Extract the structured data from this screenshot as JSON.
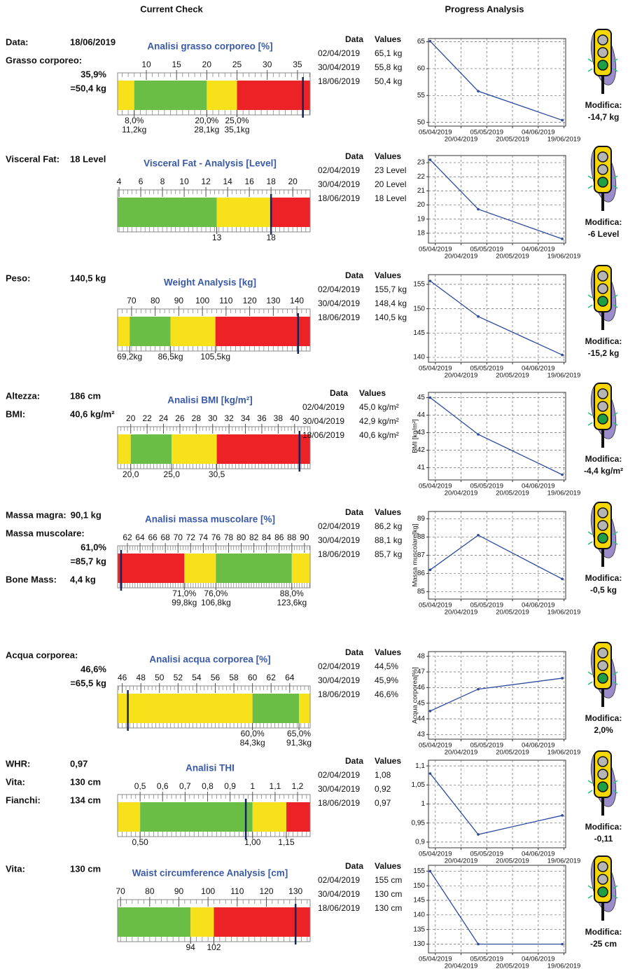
{
  "header": {
    "left": "Current Check",
    "right": "Progress Analysis"
  },
  "sections": [
    {
      "info": [
        {
          "label": "Data:",
          "value": "18/06/2019"
        },
        {
          "label": "Grasso corporeo:",
          "lines": [
            "35,9%",
            "=50,4 kg"
          ]
        }
      ],
      "gauge": {
        "title": "Analisi grasso corporeo [%]",
        "range": [
          5.25,
          37.1
        ],
        "ticks": [
          10,
          15,
          20,
          25,
          30,
          35
        ],
        "segments": [
          {
            "from": 5.25,
            "to": 8,
            "color": "#f7e11a"
          },
          {
            "from": 8,
            "to": 20,
            "color": "#6abd45"
          },
          {
            "from": 20,
            "to": 25,
            "color": "#f7e11a"
          },
          {
            "from": 25,
            "to": 37.1,
            "color": "#ec2227"
          }
        ],
        "marker": 35.9,
        "bounds": [
          {
            "value": 8,
            "label": "8,0%",
            "sub": "11,2kg"
          },
          {
            "value": 20,
            "label": "20,0%",
            "sub": "28,1kg"
          },
          {
            "value": 25,
            "label": "25,0%",
            "sub": "35,1kg"
          }
        ]
      },
      "table": {
        "headers": [
          "Data",
          "Values"
        ],
        "rows": [
          [
            "02/04/2019",
            "65,1 kg"
          ],
          [
            "30/04/2019",
            "55,8 kg"
          ],
          [
            "18/06/2019",
            "50,4 kg"
          ]
        ]
      },
      "chart": {
        "type": "line",
        "x": [
          "02/04/2019",
          "30/04/2019",
          "18/06/2019"
        ],
        "values": [
          65.1,
          55.8,
          50.4
        ],
        "ylim": [
          49.3,
          65.6
        ],
        "yticks": [
          50,
          55,
          60,
          65
        ],
        "xlim": [
          "01/04/2019",
          "20/06/2019"
        ],
        "xticks": [
          "05/04/2019",
          "20/04/2019",
          "05/05/2019",
          "20/05/2019",
          "04/06/2019",
          "19/06/2019"
        ],
        "color": "#2b4a9e"
      },
      "change": {
        "label": "Modifica:",
        "value": "-14,7 kg"
      }
    },
    {
      "info": [
        {
          "label": "Visceral Fat:",
          "value": "18 Level"
        }
      ],
      "gauge": {
        "title": "Visceral Fat - Analysis [Level]",
        "range": [
          3.87,
          21.6
        ],
        "ticks": [
          4,
          6,
          8,
          10,
          12,
          14,
          16,
          18,
          20
        ],
        "segments": [
          {
            "from": 3.87,
            "to": 13,
            "color": "#6abd45"
          },
          {
            "from": 13,
            "to": 18,
            "color": "#f7e11a"
          },
          {
            "from": 18,
            "to": 21.6,
            "color": "#ec2227"
          }
        ],
        "marker": 18,
        "bounds": [
          {
            "value": 13,
            "label": "13"
          },
          {
            "value": 18,
            "label": "18"
          }
        ]
      },
      "table": {
        "headers": [
          "Data",
          "Values"
        ],
        "rows": [
          [
            "02/04/2019",
            "23 Level"
          ],
          [
            "30/04/2019",
            "20 Level"
          ],
          [
            "18/06/2019",
            "18 Level"
          ]
        ]
      },
      "chart": {
        "type": "line",
        "x": [
          "02/04/2019",
          "30/04/2019",
          "18/06/2019"
        ],
        "values": [
          23.2,
          19.7,
          17.6
        ],
        "ylim": [
          17.3,
          23.5
        ],
        "yticks": [
          18,
          19,
          20,
          21,
          22,
          23
        ],
        "xlim": [
          "01/04/2019",
          "20/06/2019"
        ],
        "xticks": [
          "05/04/2019",
          "20/04/2019",
          "05/05/2019",
          "20/05/2019",
          "04/06/2019",
          "19/06/2019"
        ],
        "color": "#2b4a9e"
      },
      "change": {
        "label": "Modifica:",
        "value": "-6 Level"
      }
    },
    {
      "info": [
        {
          "label": "Peso:",
          "value": "140,5 kg"
        }
      ],
      "gauge": {
        "title": "Weight Analysis [kg]",
        "range": [
          64.1,
          145.6
        ],
        "ticks": [
          70,
          80,
          90,
          100,
          110,
          120,
          130,
          140
        ],
        "segments": [
          {
            "from": 64.1,
            "to": 69.2,
            "color": "#f7e11a"
          },
          {
            "from": 69.2,
            "to": 86.5,
            "color": "#6abd45"
          },
          {
            "from": 86.5,
            "to": 105.5,
            "color": "#f7e11a"
          },
          {
            "from": 105.5,
            "to": 145.6,
            "color": "#ec2227"
          }
        ],
        "marker": 140.5,
        "bounds": [
          {
            "value": 69.2,
            "label": "69,2kg"
          },
          {
            "value": 86.5,
            "label": "86,5kg"
          },
          {
            "value": 105.5,
            "label": "105,5kg"
          }
        ]
      },
      "table": {
        "headers": [
          "Data",
          "Values"
        ],
        "rows": [
          [
            "02/04/2019",
            "155,7 kg"
          ],
          [
            "30/04/2019",
            "148,4 kg"
          ],
          [
            "18/06/2019",
            "140,5 kg"
          ]
        ]
      },
      "chart": {
        "type": "line",
        "x": [
          "02/04/2019",
          "30/04/2019",
          "18/06/2019"
        ],
        "values": [
          155.7,
          148.4,
          140.5
        ],
        "ylim": [
          139,
          157
        ],
        "yticks": [
          140,
          145,
          150,
          155
        ],
        "xlim": [
          "01/04/2019",
          "20/06/2019"
        ],
        "xticks": [
          "05/04/2019",
          "20/04/2019",
          "05/05/2019",
          "20/05/2019",
          "04/06/2019",
          "19/06/2019"
        ],
        "color": "#2b4a9e"
      },
      "change": {
        "label": "Modifica:",
        "value": "-15,2 kg"
      }
    },
    {
      "info": [
        {
          "label": "Altezza:",
          "value": "186 cm"
        },
        {
          "label": "BMI:",
          "value": "40,6 kg/m²"
        }
      ],
      "gauge": {
        "title": "Analisi BMI [kg/m²]",
        "range": [
          18.4,
          41.9
        ],
        "ticks": [
          20,
          22,
          24,
          26,
          28,
          30,
          32,
          34,
          36,
          38,
          40
        ],
        "segments": [
          {
            "from": 18.4,
            "to": 20,
            "color": "#f7e11a"
          },
          {
            "from": 20,
            "to": 25,
            "color": "#6abd45"
          },
          {
            "from": 25,
            "to": 30.5,
            "color": "#f7e11a"
          },
          {
            "from": 30.5,
            "to": 41.9,
            "color": "#ec2227"
          }
        ],
        "marker": 40.6,
        "bounds": [
          {
            "value": 20,
            "label": "20,0"
          },
          {
            "value": 25,
            "label": "25,0"
          },
          {
            "value": 30.5,
            "label": "30,5"
          }
        ]
      },
      "table": {
        "headers": [
          "Data",
          "Values"
        ],
        "rows": [
          [
            "02/04/2019",
            "45,0 kg/m²"
          ],
          [
            "30/04/2019",
            "42,9 kg/m²"
          ],
          [
            "18/06/2019",
            "40,6 kg/m²"
          ]
        ]
      },
      "chart": {
        "type": "line",
        "x": [
          "02/04/2019",
          "30/04/2019",
          "18/06/2019"
        ],
        "values": [
          45.0,
          42.9,
          40.6
        ],
        "ylim": [
          40.3,
          45.3
        ],
        "yticks": [
          41,
          42,
          43,
          44,
          45
        ],
        "ylabel": "BMI [kg/m²]",
        "xlim": [
          "01/04/2019",
          "20/06/2019"
        ],
        "xticks": [
          "05/04/2019",
          "20/04/2019",
          "05/05/2019",
          "20/05/2019",
          "04/06/2019",
          "19/06/2019"
        ],
        "color": "#2b4a9e"
      },
      "change": {
        "label": "Modifica:",
        "value": "-4,4 kg/m²"
      }
    },
    {
      "info": [
        {
          "label": "Massa magra:",
          "value": "90,1 kg"
        },
        {
          "label": "Massa muscolare:",
          "lines": [
            "61,0%",
            "=85,7 kg"
          ]
        },
        {
          "label": "Bone Mass:",
          "value": "4,4 kg"
        }
      ],
      "gauge": {
        "title": "Analisi massa muscolare [%]",
        "range": [
          60.45,
          90.9
        ],
        "ticks": [
          62,
          64,
          66,
          68,
          70,
          72,
          74,
          76,
          78,
          80,
          82,
          84,
          86,
          88,
          90
        ],
        "segments": [
          {
            "from": 60.45,
            "to": 71,
            "color": "#ec2227"
          },
          {
            "from": 71,
            "to": 76,
            "color": "#f7e11a"
          },
          {
            "from": 76,
            "to": 88,
            "color": "#6abd45"
          },
          {
            "from": 88,
            "to": 90.9,
            "color": "#f7e11a"
          }
        ],
        "marker": 61,
        "bounds": [
          {
            "value": 71,
            "label": "71,0%",
            "sub": "99,8kg"
          },
          {
            "value": 76,
            "label": "76,0%",
            "sub": "106,8kg"
          },
          {
            "value": 88,
            "label": "88,0%",
            "sub": "123,6kg"
          }
        ]
      },
      "table": {
        "headers": [
          "Data",
          "Values"
        ],
        "rows": [
          [
            "02/04/2019",
            "86,2 kg"
          ],
          [
            "30/04/2019",
            "88,1 kg"
          ],
          [
            "18/06/2019",
            "85,7 kg"
          ]
        ]
      },
      "chart": {
        "type": "line",
        "x": [
          "02/04/2019",
          "30/04/2019",
          "18/06/2019"
        ],
        "values": [
          86.2,
          88.1,
          85.7
        ],
        "ylim": [
          84.6,
          89.4
        ],
        "yticks": [
          85,
          86,
          87,
          88,
          89
        ],
        "ylabel": "Massa muscolare[kg]",
        "xlim": [
          "01/04/2019",
          "20/06/2019"
        ],
        "xticks": [
          "05/04/2019",
          "20/04/2019",
          "05/05/2019",
          "20/05/2019",
          "04/06/2019",
          "19/06/2019"
        ],
        "color": "#2b4a9e"
      },
      "change": {
        "label": "Modifica:",
        "value": "-0,5 kg"
      }
    },
    {
      "info": [
        {
          "label": "Acqua corporea:",
          "lines": [
            "46,6%",
            "=65,5 kg"
          ]
        }
      ],
      "gauge": {
        "title": "Analisi acqua corporea [%]",
        "range": [
          45.5,
          66.2
        ],
        "ticks": [
          46,
          48,
          50,
          52,
          54,
          56,
          58,
          60,
          62,
          64
        ],
        "segments": [
          {
            "from": 45.5,
            "to": 60,
            "color": "#f7e11a"
          },
          {
            "from": 60,
            "to": 65,
            "color": "#6abd45"
          },
          {
            "from": 65,
            "to": 66.2,
            "color": "#f7e11a"
          }
        ],
        "marker": 46.6,
        "bounds": [
          {
            "value": 60,
            "label": "60,0%",
            "sub": "84,3kg"
          },
          {
            "value": 65,
            "label": "65,0%",
            "sub": "91,3kg"
          }
        ]
      },
      "table": {
        "headers": [
          "Data",
          "Values"
        ],
        "rows": [
          [
            "02/04/2019",
            "44,5%"
          ],
          [
            "30/04/2019",
            "45,9%"
          ],
          [
            "18/06/2019",
            "46,6%"
          ]
        ]
      },
      "chart": {
        "type": "line",
        "x": [
          "02/04/2019",
          "30/04/2019",
          "18/06/2019"
        ],
        "values": [
          44.5,
          45.9,
          46.6
        ],
        "ylim": [
          42.7,
          48.3
        ],
        "yticks": [
          43,
          44,
          45,
          46,
          47,
          48
        ],
        "ylabel": "Acqua corporea[%]",
        "xlim": [
          "01/04/2019",
          "20/06/2019"
        ],
        "xticks": [
          "05/04/2019",
          "20/04/2019",
          "05/05/2019",
          "20/05/2019",
          "04/06/2019",
          "19/06/2019"
        ],
        "color": "#2b4a9e"
      },
      "change": {
        "label": "Modifica:",
        "value": "2,0%"
      }
    },
    {
      "info": [
        {
          "label": "WHR:",
          "value": "0,97"
        },
        {
          "label": "Vita:",
          "value": "130 cm"
        },
        {
          "label": "Fianchi:",
          "value": "134 cm"
        }
      ],
      "gauge": {
        "title": "Analisi THI",
        "range": [
          0.4,
          1.256
        ],
        "ticks": [
          {
            "value": 0.5,
            "label": "0,5"
          },
          {
            "value": 0.6,
            "label": "0,6"
          },
          {
            "value": 0.7,
            "label": "0,7"
          },
          {
            "value": 0.8,
            "label": "0,8"
          },
          {
            "value": 0.9,
            "label": "0,9"
          },
          1,
          {
            "value": 1.1,
            "label": "1,1"
          },
          {
            "value": 1.2,
            "label": "1,2"
          }
        ],
        "segments": [
          {
            "from": 0.4,
            "to": 0.5,
            "color": "#f7e11a"
          },
          {
            "from": 0.5,
            "to": 1.0,
            "color": "#6abd45"
          },
          {
            "from": 1.0,
            "to": 1.15,
            "color": "#f7e11a"
          },
          {
            "from": 1.15,
            "to": 1.256,
            "color": "#ec2227"
          }
        ],
        "marker": 0.97,
        "bounds": [
          {
            "value": 0.5,
            "label": "0,50"
          },
          {
            "value": 1.0,
            "label": "1,00"
          },
          {
            "value": 1.15,
            "label": "1,15"
          }
        ]
      },
      "table": {
        "headers": [
          "Data",
          "Values"
        ],
        "rows": [
          [
            "02/04/2019",
            "1,08"
          ],
          [
            "30/04/2019",
            "0,92"
          ],
          [
            "18/06/2019",
            "0,97"
          ]
        ]
      },
      "chart": {
        "type": "line",
        "x": [
          "02/04/2019",
          "30/04/2019",
          "18/06/2019"
        ],
        "values": [
          1.08,
          0.92,
          0.97
        ],
        "ylim": [
          0.885,
          1.115
        ],
        "yticks": [
          {
            "value": 0.9,
            "label": "0,9"
          },
          {
            "value": 0.95,
            "label": "0,95"
          },
          1,
          {
            "value": 1.05,
            "label": "1,05"
          },
          {
            "value": 1.1,
            "label": "1,1"
          }
        ],
        "xlim": [
          "01/04/2019",
          "20/06/2019"
        ],
        "xticks": [
          "05/04/2019",
          "20/04/2019",
          "05/05/2019",
          "20/05/2019",
          "04/06/2019",
          "19/06/2019"
        ],
        "color": "#2b4a9e"
      },
      "change": {
        "label": "Modifica:",
        "value": "-0,11"
      }
    },
    {
      "info": [
        {
          "label": "Vita:",
          "value": "130 cm"
        }
      ],
      "gauge": {
        "title": "Waist circumference Analysis [cm]",
        "range": [
          69,
          135
        ],
        "ticks": [
          70,
          80,
          90,
          100,
          110,
          120,
          130
        ],
        "segments": [
          {
            "from": 69,
            "to": 94,
            "color": "#6abd45"
          },
          {
            "from": 94,
            "to": 102,
            "color": "#f7e11a"
          },
          {
            "from": 102,
            "to": 135,
            "color": "#ec2227"
          }
        ],
        "marker": 130,
        "bounds": [
          {
            "value": 94,
            "label": "94"
          },
          {
            "value": 102,
            "label": "102"
          }
        ]
      },
      "table": {
        "headers": [
          "Data",
          "Values"
        ],
        "rows": [
          [
            "02/04/2019",
            "155 cm"
          ],
          [
            "30/04/2019",
            "130 cm"
          ],
          [
            "18/06/2019",
            "130 cm"
          ]
        ]
      },
      "chart": {
        "type": "line",
        "x": [
          "02/04/2019",
          "30/04/2019",
          "18/06/2019"
        ],
        "values": [
          155,
          130,
          130
        ],
        "ylim": [
          127,
          157
        ],
        "yticks": [
          130,
          135,
          140,
          145,
          150,
          155
        ],
        "xlim": [
          "01/04/2019",
          "20/06/2019"
        ],
        "xticks": [
          "05/04/2019",
          "20/04/2019",
          "05/05/2019",
          "20/05/2019",
          "04/06/2019",
          "19/06/2019"
        ],
        "color": "#2b4a9e"
      },
      "change": {
        "label": "Modifica:",
        "value": "-25 cm"
      }
    }
  ]
}
